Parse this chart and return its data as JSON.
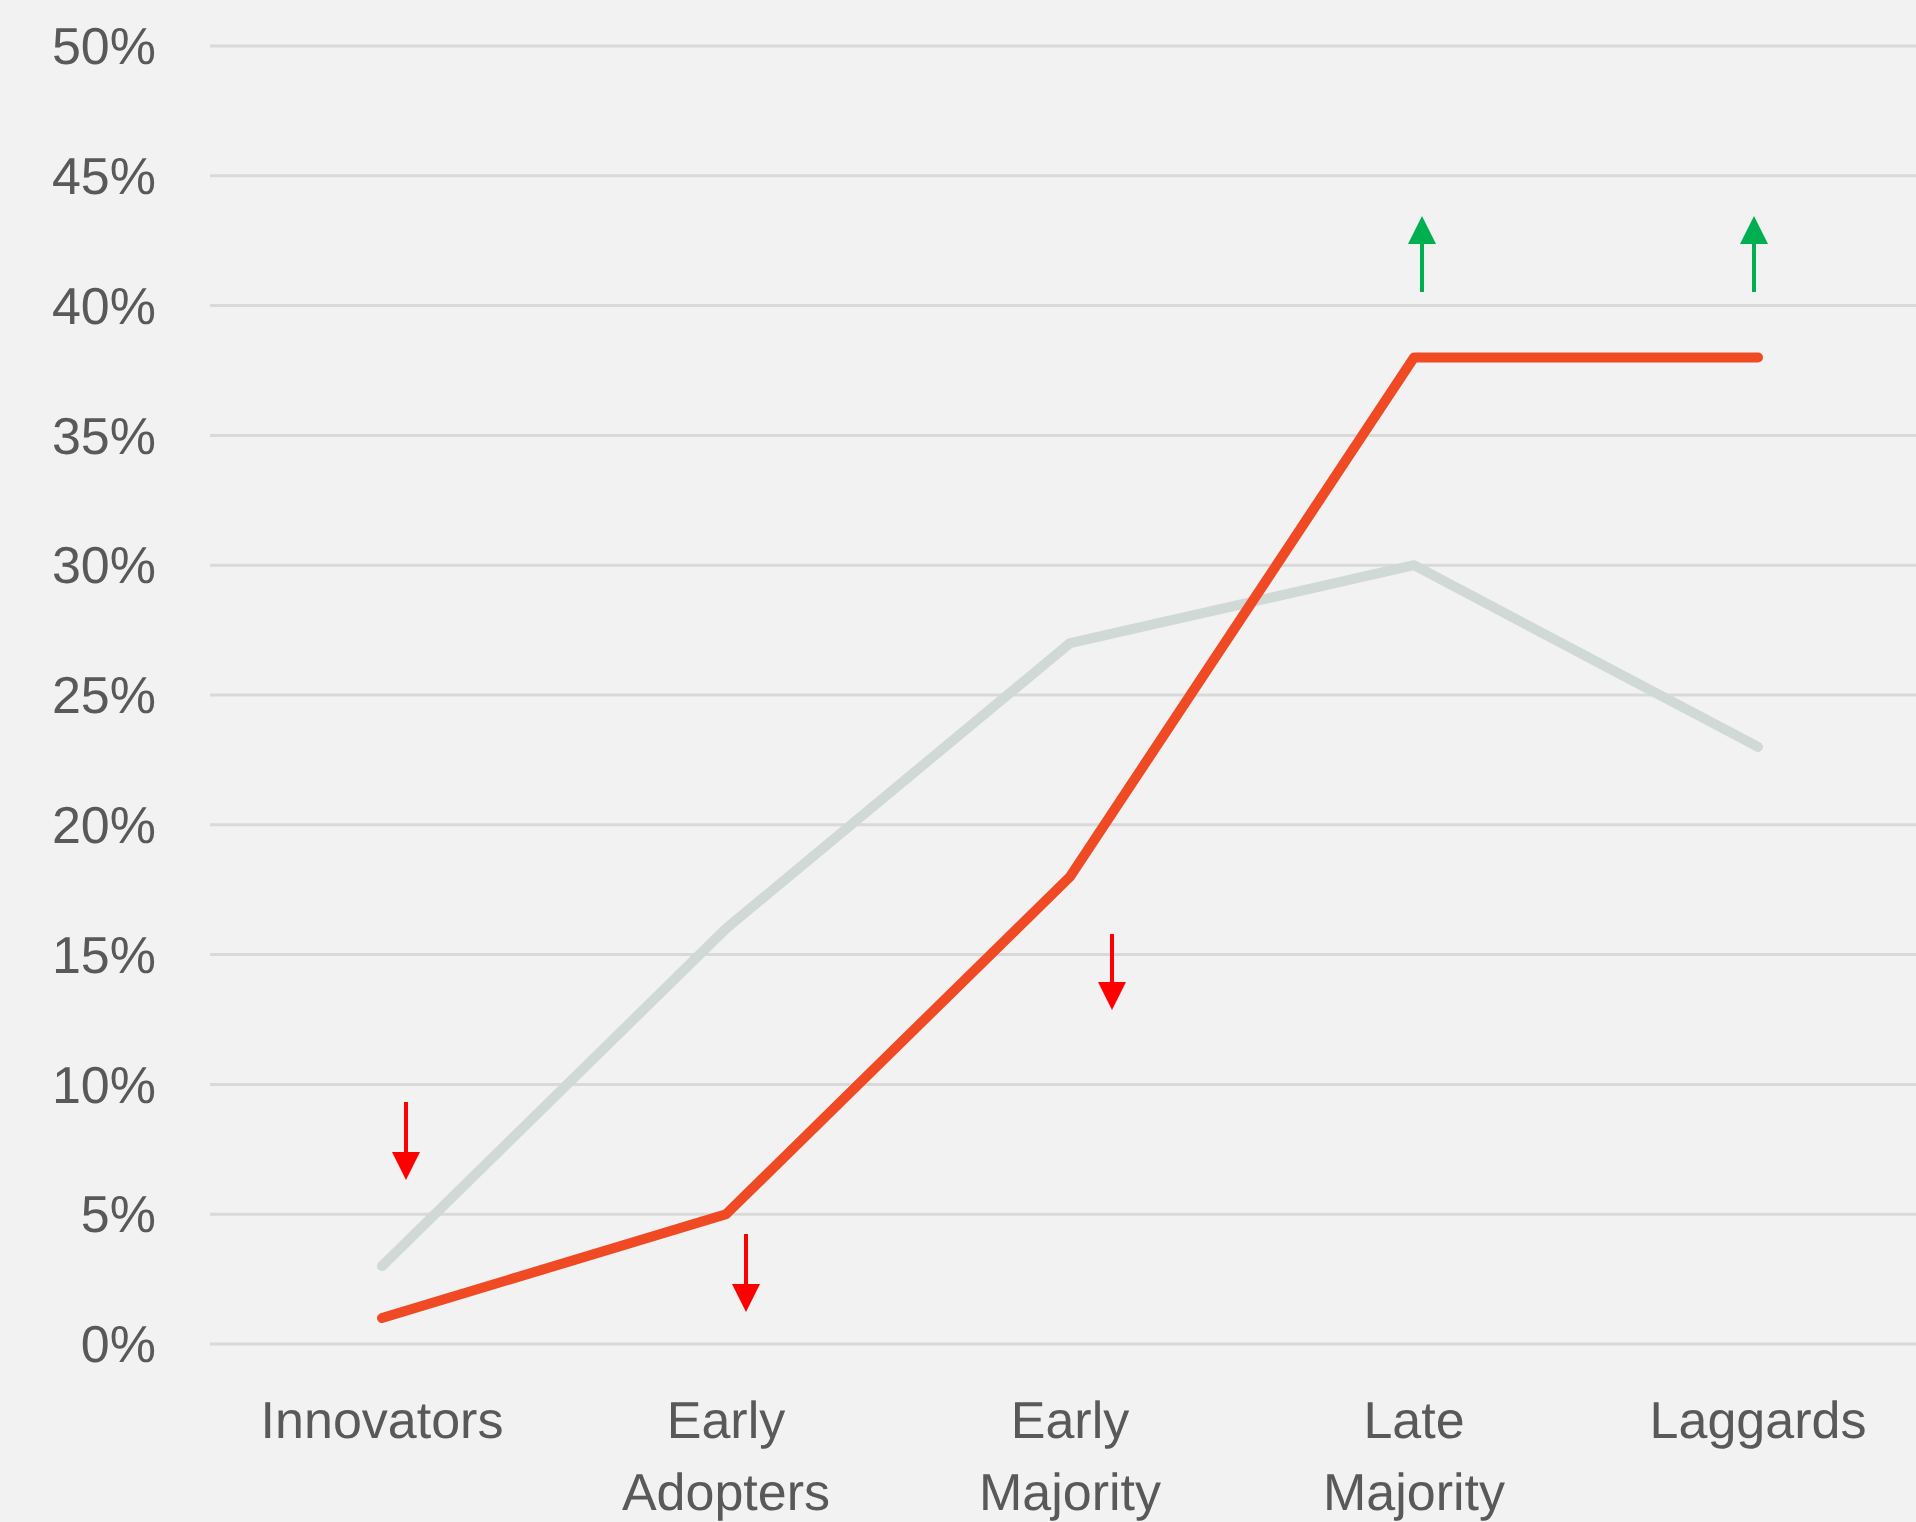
{
  "chart_data": {
    "type": "line",
    "categories": [
      "Innovators",
      "Early Adopters",
      "Early Majority",
      "Late Majority",
      "Laggards"
    ],
    "series": [
      {
        "color": "#d0d9d6",
        "values": [
          3,
          16,
          27,
          30,
          23
        ]
      },
      {
        "color": "#f04a24",
        "values": [
          1,
          5,
          18,
          38,
          38
        ]
      }
    ],
    "ylim": [
      0,
      50
    ],
    "yticks": [
      {
        "value": 0,
        "label": "0%"
      },
      {
        "value": 5,
        "label": "5%"
      },
      {
        "value": 10,
        "label": "10%"
      },
      {
        "value": 15,
        "label": "15%"
      },
      {
        "value": 20,
        "label": "20%"
      },
      {
        "value": 25,
        "label": "25%"
      },
      {
        "value": 30,
        "label": "30%"
      },
      {
        "value": 35,
        "label": "35%"
      },
      {
        "value": 40,
        "label": "40%"
      },
      {
        "value": 45,
        "label": "45%"
      },
      {
        "value": 50,
        "label": "50%"
      }
    ],
    "grid": "y",
    "marker": "none",
    "line_style": "solid"
  }
}
